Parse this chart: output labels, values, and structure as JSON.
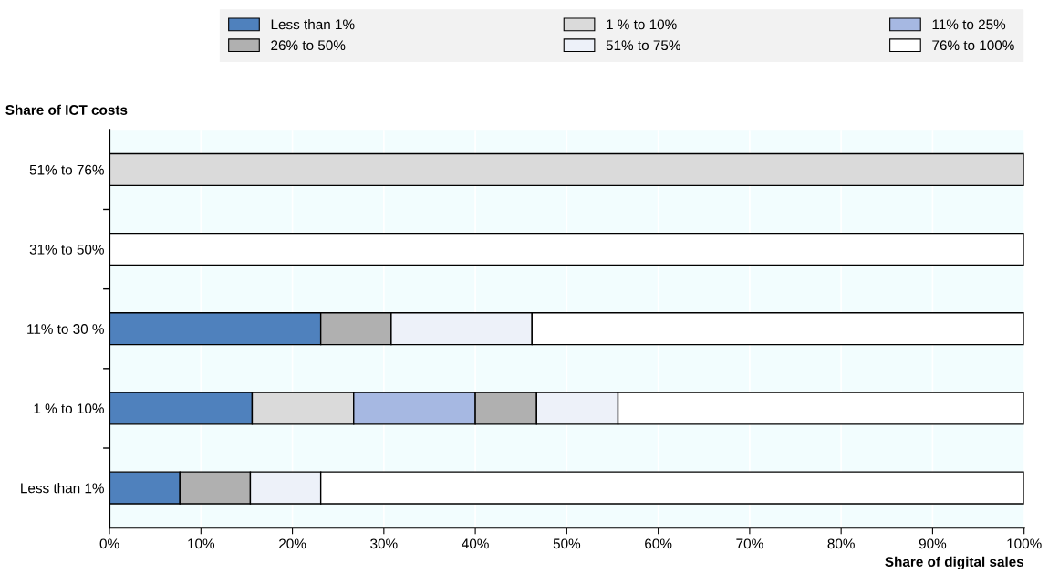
{
  "chart_data": {
    "type": "bar",
    "orientation": "horizontal",
    "stacked": true,
    "xlabel": "Share of digital sales",
    "ylabel": "Share of ICT costs",
    "categories": [
      "51% to 76%",
      "31% to 50%",
      "11% to 30 %",
      "1 % to 10%",
      "Less than 1%"
    ],
    "series": [
      {
        "name": "Less than 1%",
        "color": "#4f81bd",
        "values": [
          null,
          null,
          23.1,
          15.6,
          7.7
        ]
      },
      {
        "name": "1 % to 10%",
        "color": "#dadada",
        "values": [
          100,
          null,
          null,
          11.1,
          null
        ]
      },
      {
        "name": "11% to 25%",
        "color": "#a6b8e2",
        "values": [
          null,
          null,
          null,
          13.3,
          null
        ]
      },
      {
        "name": "26% to 50%",
        "color": "#b0b0b0",
        "values": [
          null,
          null,
          7.7,
          6.7,
          7.7
        ]
      },
      {
        "name": "51% to 75%",
        "color": "#edf1f9",
        "values": [
          null,
          null,
          15.4,
          8.9,
          7.7
        ]
      },
      {
        "name": "76% to 100%",
        "color": "#ffffff",
        "values": [
          null,
          100,
          53.8,
          44.4,
          76.9
        ]
      }
    ],
    "xlim": [
      0,
      100
    ],
    "xticks": [
      {
        "value": 0,
        "label": "0%"
      },
      {
        "value": 10,
        "label": "10%"
      },
      {
        "value": 20,
        "label": "20%"
      },
      {
        "value": 30,
        "label": "30%"
      },
      {
        "value": 40,
        "label": "40%"
      },
      {
        "value": 50,
        "label": "50%"
      },
      {
        "value": 60,
        "label": "60%"
      },
      {
        "value": 70,
        "label": "70%"
      },
      {
        "value": 80,
        "label": "80%"
      },
      {
        "value": 90,
        "label": "90%"
      },
      {
        "value": 100,
        "label": "100%"
      }
    ],
    "grid": "x",
    "legend": "top"
  }
}
